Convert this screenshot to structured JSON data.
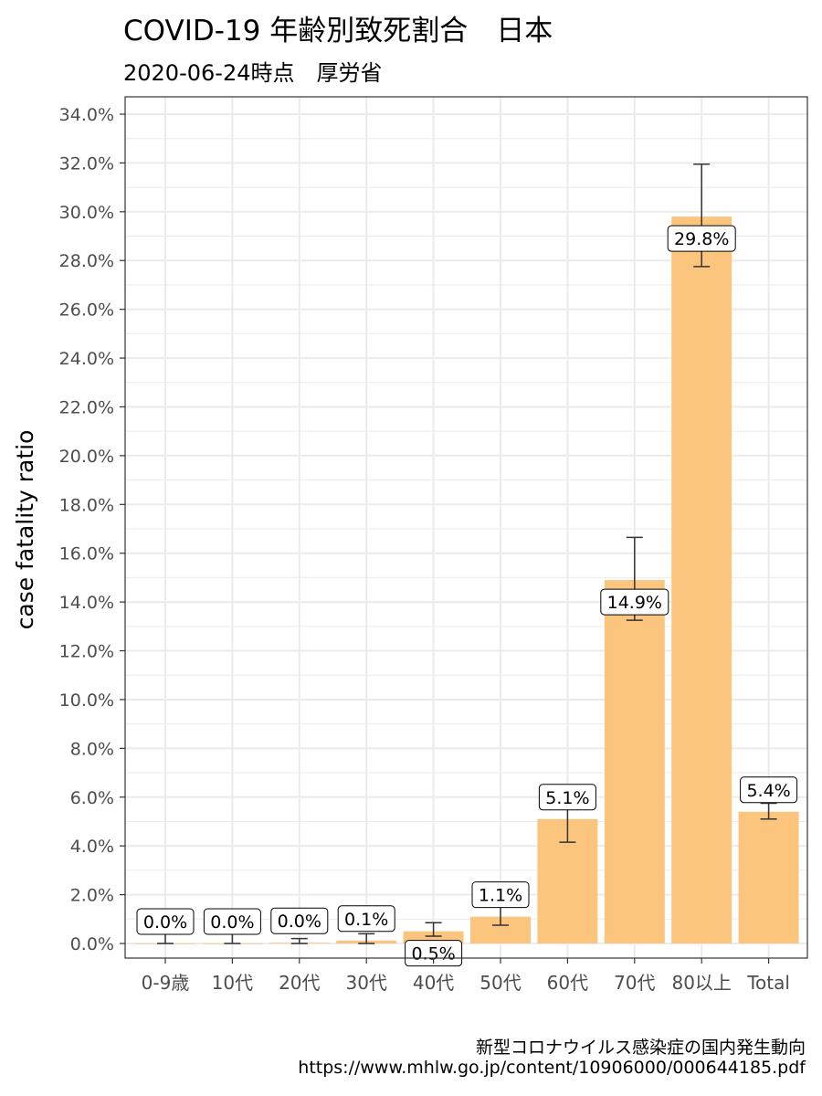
{
  "title": "COVID-19 年齢別致死割合　日本",
  "subtitle": "2020-06-24時点　厚労省",
  "caption": {
    "line1": "新型コロナウイルス感染症の国内発生動向",
    "line2": "https://www.mhlw.go.jp/content/10906000/000644185.pdf"
  },
  "colors": {
    "bar": "#fbc57e",
    "error_bar": "#333333",
    "grid": "#ebebeb",
    "panel_border": "#333333"
  },
  "chart_data": {
    "type": "bar",
    "ylabel": "case fatality ratio",
    "xlabel": "",
    "ylim": [
      0,
      34
    ],
    "y_unit": "%",
    "y_ticks": [
      0,
      2,
      4,
      6,
      8,
      10,
      12,
      14,
      16,
      18,
      20,
      22,
      24,
      26,
      28,
      30,
      32,
      34
    ],
    "y_tick_labels": [
      "0.0%",
      "2.0%",
      "4.0%",
      "6.0%",
      "8.0%",
      "10.0%",
      "12.0%",
      "14.0%",
      "16.0%",
      "18.0%",
      "20.0%",
      "22.0%",
      "24.0%",
      "26.0%",
      "28.0%",
      "30.0%",
      "32.0%",
      "34.0%"
    ],
    "categories": [
      "0-9歳",
      "10代",
      "20代",
      "30代",
      "40代",
      "50代",
      "60代",
      "70代",
      "80以上",
      "Total"
    ],
    "values": [
      0.0,
      0.0,
      0.03,
      0.12,
      0.5,
      1.1,
      5.1,
      14.9,
      29.8,
      5.4
    ],
    "error_low": [
      0.0,
      0.0,
      0.0,
      0.0,
      0.3,
      0.75,
      4.15,
      13.25,
      27.75,
      5.1
    ],
    "error_high": [
      1.25,
      0.95,
      0.2,
      0.4,
      0.85,
      1.6,
      6.15,
      16.65,
      31.95,
      5.75
    ],
    "data_labels": [
      "0.0%",
      "0.0%",
      "0.0%",
      "0.1%",
      "0.5%",
      "1.1%",
      "5.1%",
      "14.9%",
      "29.8%",
      "5.4%"
    ],
    "grid": true,
    "legend": "none"
  }
}
